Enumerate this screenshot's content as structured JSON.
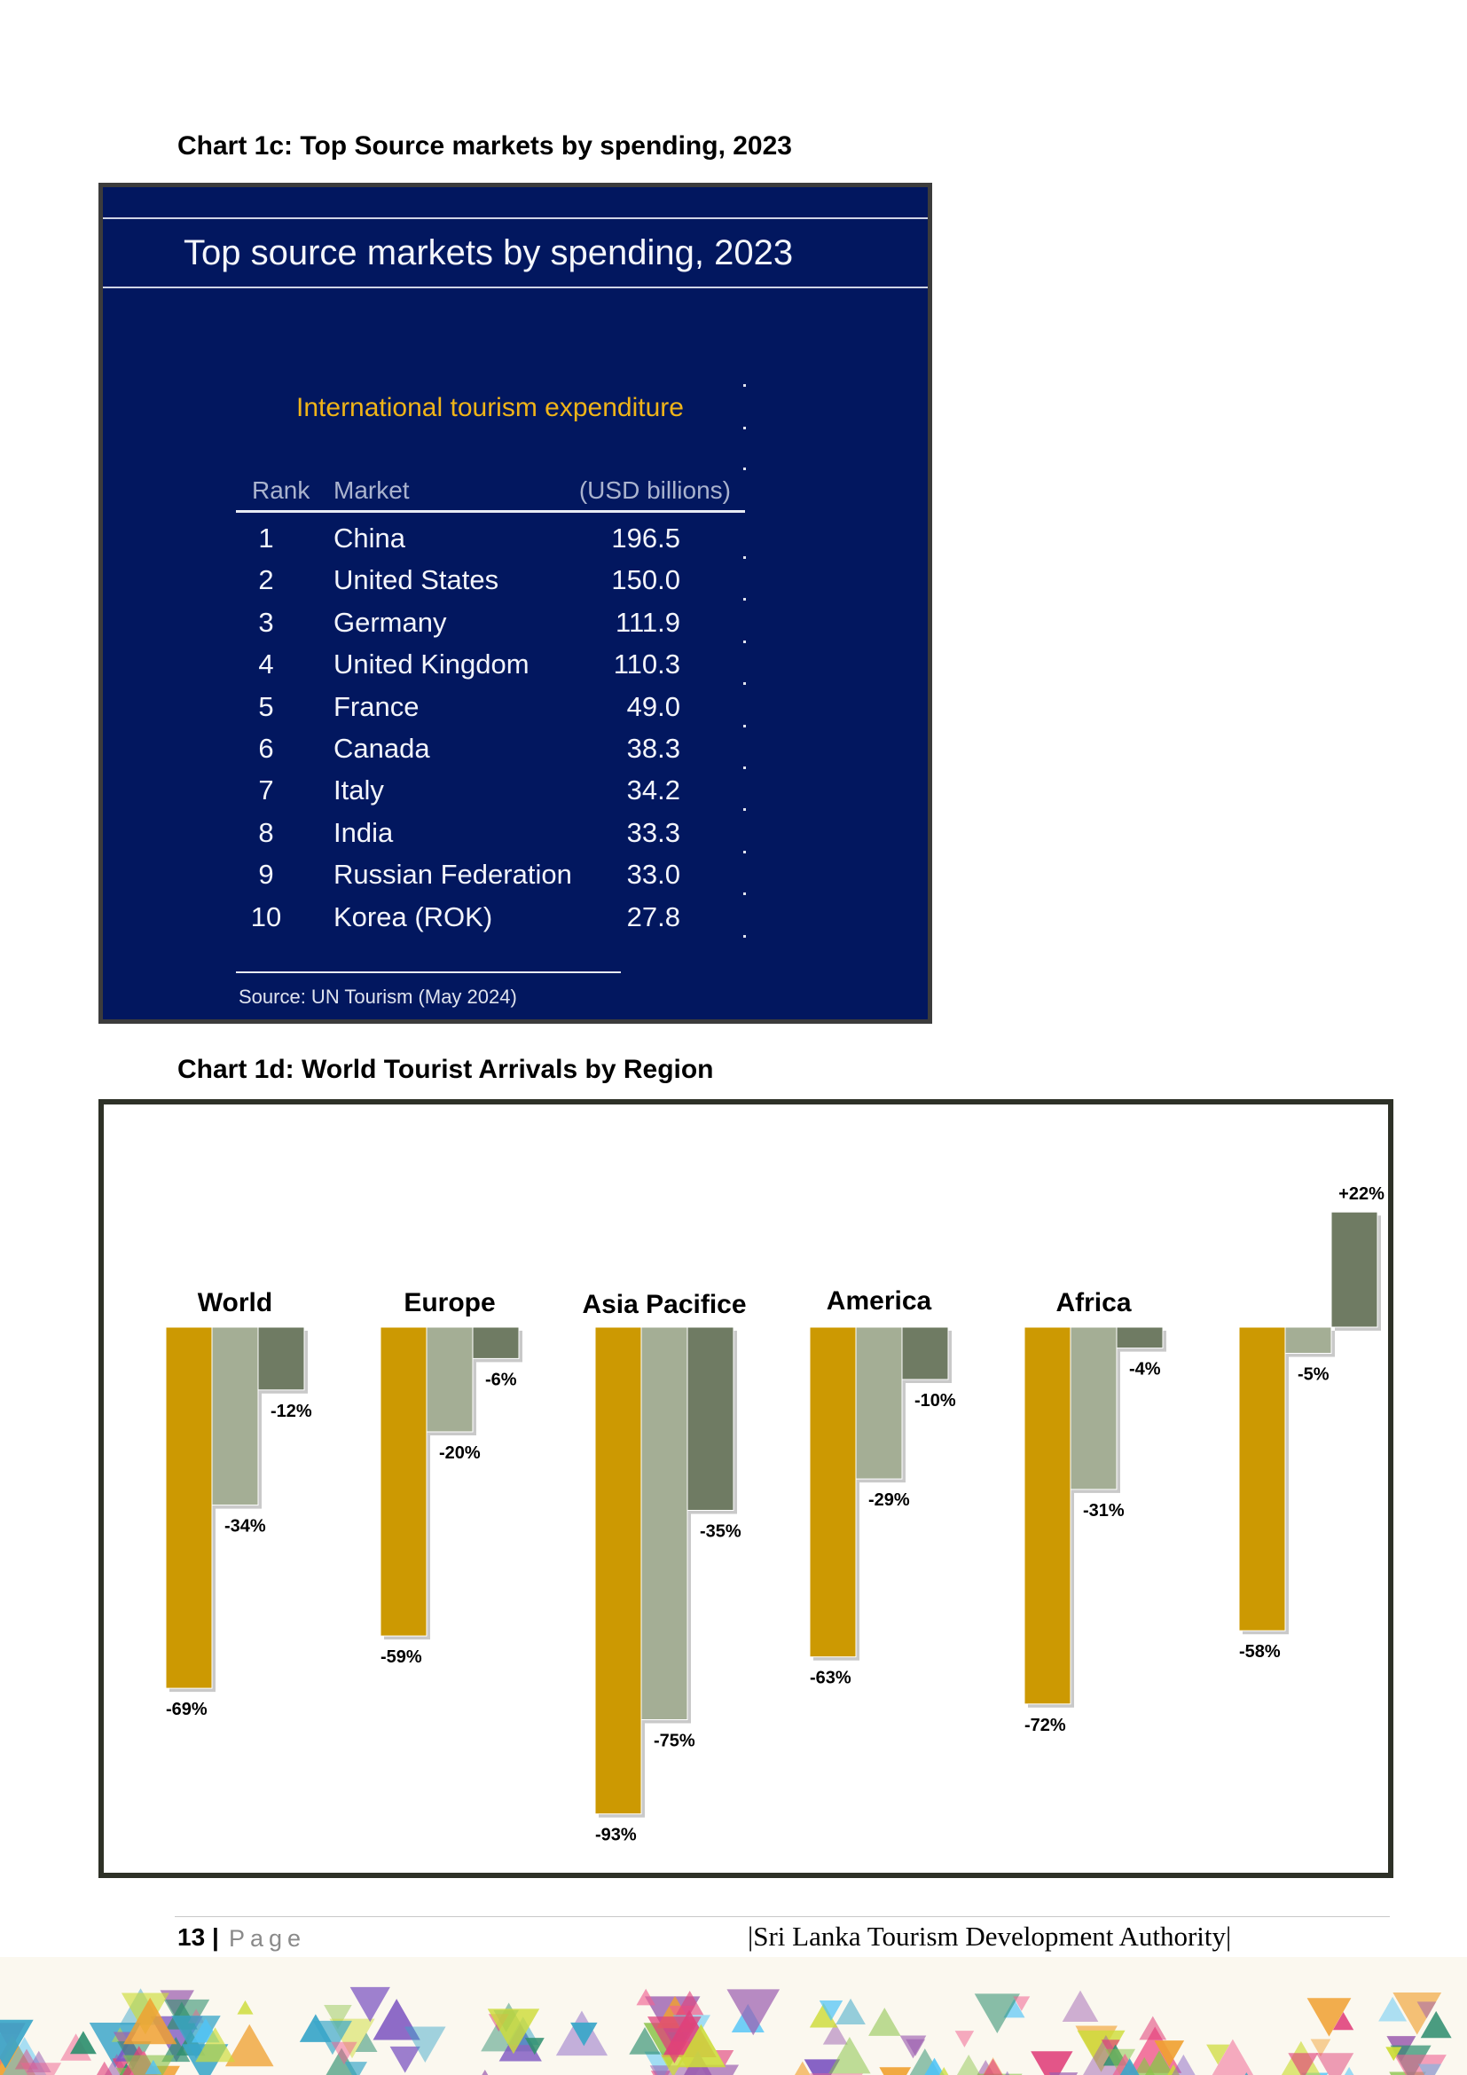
{
  "chart1c": {
    "caption": "Chart 1c: Top Source markets by spending, 2023",
    "panel_title": "Top source markets by spending, 2023",
    "subtitle": "International tourism expenditure",
    "columns": [
      "Rank",
      "Market",
      "(USD billions)"
    ],
    "source": "Source: UN Tourism (May 2024)",
    "colors": {
      "panel_bg": "#02175f",
      "subtitle": "#f0b418"
    }
  },
  "chart_data": [
    {
      "type": "table",
      "title": "Top source markets by spending, 2023",
      "subtitle": "International tourism expenditure",
      "columns": [
        "Rank",
        "Market",
        "(USD billions)"
      ],
      "rows": [
        {
          "rank": "1",
          "market": "China",
          "value": "196.5"
        },
        {
          "rank": "2",
          "market": "United States",
          "value": "150.0"
        },
        {
          "rank": "3",
          "market": "Germany",
          "value": "111.9"
        },
        {
          "rank": "4",
          "market": "United Kingdom",
          "value": "110.3"
        },
        {
          "rank": "5",
          "market": "France",
          "value": "49.0"
        },
        {
          "rank": "6",
          "market": "Canada",
          "value": "38.3"
        },
        {
          "rank": "7",
          "market": "Italy",
          "value": "34.2"
        },
        {
          "rank": "8",
          "market": "India",
          "value": "33.3"
        },
        {
          "rank": "9",
          "market": "Russian Federation",
          "value": "33.0"
        },
        {
          "rank": "10",
          "market": "Korea (ROK)",
          "value": "27.8"
        }
      ],
      "source": "Source: UN Tourism (May 2024)"
    },
    {
      "type": "bar",
      "title": "",
      "unit": "%",
      "categories": [
        "World",
        "Europe",
        "Asia Pacifice",
        "America",
        "Africa",
        ""
      ],
      "series": [
        {
          "values": [
            -69,
            -59,
            -93,
            -63,
            -72,
            -58
          ],
          "labels": [
            "-69%",
            "-59%",
            "-93%",
            "-63%",
            "-72%",
            "-58%"
          ],
          "color": "#cc9902"
        },
        {
          "values": [
            -34,
            -20,
            -75,
            -29,
            -31,
            -5
          ],
          "labels": [
            "-34%",
            "-20%",
            "-75%",
            "-29%",
            "-31%",
            "-5%"
          ],
          "color": "#a4ae95"
        },
        {
          "values": [
            -12,
            -6,
            -35,
            -10,
            -4,
            22
          ],
          "labels": [
            "-12%",
            "-6%",
            "-35%",
            "-10%",
            "-4%",
            "+22%"
          ],
          "color": "#6f7b63"
        }
      ],
      "legend": "none",
      "grid": false
    }
  ],
  "chart1d": {
    "caption": "Chart 1d: World Tourist Arrivals by Region"
  },
  "footer": {
    "page_number": "13",
    "separator": "|",
    "page_word": "Page",
    "organization": "|Sri Lanka Tourism Development Authority|"
  }
}
